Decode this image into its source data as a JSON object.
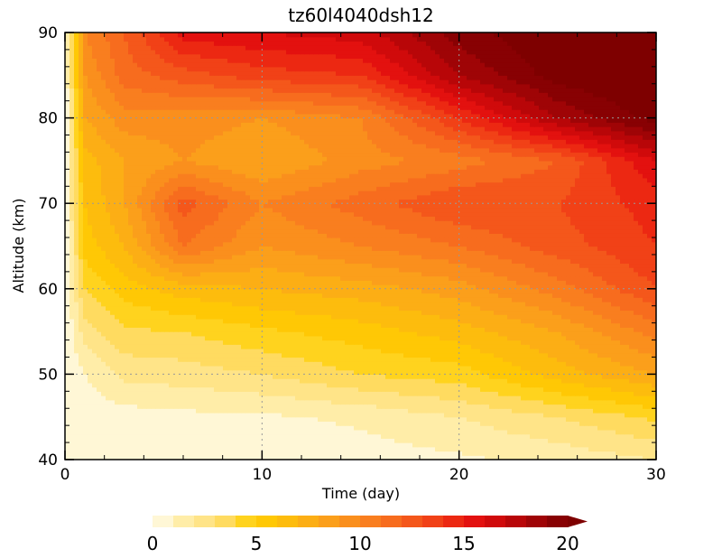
{
  "chart_data": {
    "type": "heatmap",
    "title": "tz60l4040dsh12",
    "xlabel": "Time (day)",
    "ylabel": "Altitude (km)",
    "xlim": [
      0,
      30
    ],
    "ylim": [
      40,
      90
    ],
    "x_ticks": [
      "0",
      "10",
      "20",
      "30"
    ],
    "y_ticks": [
      "40",
      "50",
      "60",
      "70",
      "80",
      "90"
    ],
    "grid": "dotted",
    "colorbar": {
      "position": "bottom",
      "min": 0,
      "max": 20,
      "step": 1,
      "extend": "max",
      "tick_values": [
        0,
        5,
        10,
        15,
        20
      ],
      "tick_labels": [
        "0",
        "5",
        "10",
        "15",
        "20"
      ],
      "colors": [
        "#fff7d6",
        "#ffeda8",
        "#ffe488",
        "#ffdb60",
        "#ffd31e",
        "#ffc805",
        "#fdbc0d",
        "#fcae15",
        "#fb9f1b",
        "#fa8f1d",
        "#f97e1f",
        "#f76c1e",
        "#f4571b",
        "#f14117",
        "#ec2812",
        "#e3110f",
        "#d00a0b",
        "#b80608",
        "#9f0406",
        "#880103"
      ],
      "extend_color": "#7e0000"
    },
    "grid_x": [
      0,
      1,
      3,
      6,
      10,
      15,
      20,
      25,
      30
    ],
    "grid_y": [
      40,
      45,
      50,
      55,
      60,
      65,
      70,
      75,
      80,
      85,
      90
    ],
    "z": [
      [
        0.0,
        0.0,
        0.2,
        0.3,
        0.3,
        0.5,
        0.8,
        1.3,
        2.0
      ],
      [
        0.0,
        0.3,
        0.5,
        0.7,
        0.8,
        1.2,
        2.0,
        3.0,
        4.2
      ],
      [
        0.0,
        1.0,
        2.3,
        2.5,
        3.0,
        4.0,
        4.5,
        6.5,
        8.0
      ],
      [
        0.0,
        2.5,
        3.8,
        4.0,
        4.8,
        5.5,
        6.5,
        8.0,
        10.5
      ],
      [
        0.0,
        4.0,
        5.5,
        6.5,
        7.0,
        7.5,
        8.5,
        10.5,
        13.0
      ],
      [
        0.0,
        5.5,
        7.0,
        11.0,
        9.0,
        10.0,
        11.0,
        12.5,
        14.0
      ],
      [
        0.0,
        6.0,
        8.0,
        12.5,
        10.0,
        11.5,
        13.0,
        13.0,
        14.5
      ],
      [
        0.0,
        6.5,
        8.0,
        9.0,
        8.0,
        9.5,
        10.5,
        12.0,
        16.0
      ],
      [
        0.0,
        8.0,
        9.5,
        9.5,
        9.0,
        10.0,
        14.0,
        18.0,
        20.5
      ],
      [
        0.0,
        9.0,
        11.5,
        12.5,
        13.5,
        14.0,
        18.0,
        20.5,
        21.5
      ],
      [
        0.0,
        10.0,
        12.0,
        15.5,
        16.0,
        16.5,
        19.5,
        21.0,
        22.0
      ]
    ]
  }
}
